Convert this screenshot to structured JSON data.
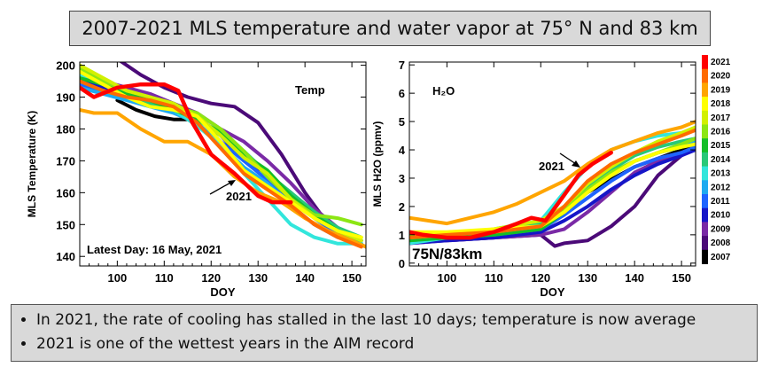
{
  "title": "2007-2021 MLS temperature and water vapor at 75° N and 83 km",
  "bullets": [
    "In 2021, the rate of cooling has stalled in the last 10 days; temperature is now average",
    "2021 is one of the wettest years in the AIM record"
  ],
  "chart_data": [
    {
      "type": "line",
      "xlabel": "DOY",
      "ylabel": "MLS Temperature (K)",
      "xlim": [
        92,
        153
      ],
      "ylim": [
        137,
        201
      ],
      "xticks": [
        100,
        110,
        120,
        130,
        140,
        150
      ],
      "yticks": [
        140,
        150,
        160,
        170,
        180,
        190,
        200
      ],
      "panel_label": "Temp",
      "latest_day": "Latest Day: 16 May, 2021",
      "annotation": "2021",
      "series": [
        {
          "name": "2007",
          "color": "#000000",
          "x": [
            100,
            104,
            108,
            112,
            115
          ],
          "y": [
            189,
            186,
            184,
            183,
            183
          ]
        },
        {
          "name": "2008",
          "color": "#4b0a78",
          "x": [
            100,
            105,
            110,
            115,
            120,
            125,
            130,
            135,
            140,
            145,
            150,
            153
          ],
          "y": [
            202,
            197,
            193,
            190,
            188,
            187,
            182,
            172,
            160,
            150,
            145,
            143
          ]
        },
        {
          "name": "2009",
          "color": "#7a2aa6",
          "x": [
            92,
            97,
            102,
            107,
            112,
            117,
            122,
            127,
            132,
            137,
            142,
            147,
            152
          ],
          "y": [
            196,
            195,
            193,
            191,
            188,
            185,
            180,
            176,
            170,
            163,
            155,
            149,
            144
          ]
        },
        {
          "name": "2010",
          "color": "#1616c8",
          "x": [
            92,
            97,
            102,
            107,
            112,
            117,
            122,
            127,
            132,
            137,
            142,
            147,
            152
          ],
          "y": [
            195,
            193,
            192,
            190,
            188,
            184,
            178,
            170,
            166,
            160,
            153,
            147,
            144
          ]
        },
        {
          "name": "2011",
          "color": "#1e64ff",
          "x": [
            92,
            97,
            102,
            107,
            112,
            117,
            122,
            127,
            132,
            137,
            142,
            147,
            152
          ],
          "y": [
            194,
            192,
            190,
            188,
            186,
            184,
            176,
            170,
            164,
            158,
            152,
            147,
            145
          ]
        },
        {
          "name": "2012",
          "color": "#1eaaf0",
          "x": [
            92,
            97,
            102,
            107,
            112,
            117,
            122,
            127,
            132,
            137,
            142,
            147,
            152
          ],
          "y": [
            193,
            191,
            189,
            187,
            185,
            182,
            175,
            168,
            163,
            156,
            150,
            146,
            144
          ]
        },
        {
          "name": "2013",
          "color": "#32e6dc",
          "x": [
            92,
            97,
            102,
            107,
            112,
            117,
            122,
            127,
            132,
            137,
            142,
            147,
            152
          ],
          "y": [
            197,
            194,
            191,
            189,
            186,
            181,
            175,
            166,
            158,
            150,
            146,
            144,
            144
          ]
        },
        {
          "name": "2014",
          "color": "#28c878",
          "x": [
            92,
            97,
            102,
            107,
            112,
            117,
            122,
            127,
            132,
            137,
            142,
            147,
            152
          ],
          "y": [
            195,
            192,
            190,
            188,
            187,
            183,
            178,
            173,
            166,
            160,
            154,
            149,
            146
          ]
        },
        {
          "name": "2015",
          "color": "#14be28",
          "x": [
            92,
            97,
            102,
            107,
            112,
            117,
            122,
            127,
            132,
            137,
            142,
            147,
            152
          ],
          "y": [
            196,
            194,
            191,
            189,
            186,
            183,
            179,
            172,
            167,
            159,
            153,
            148,
            145
          ]
        },
        {
          "name": "2016",
          "color": "#8ce614",
          "x": [
            92,
            97,
            102,
            107,
            112,
            117,
            122,
            127,
            132,
            137,
            142,
            147,
            152
          ],
          "y": [
            199,
            195,
            192,
            190,
            187,
            185,
            180,
            173,
            165,
            158,
            153,
            152,
            150
          ]
        },
        {
          "name": "2017",
          "color": "#d2f000",
          "x": [
            92,
            97,
            102,
            107,
            112,
            117,
            122,
            127,
            132,
            137,
            142,
            147,
            152
          ],
          "y": [
            200,
            196,
            192,
            190,
            188,
            184,
            178,
            171,
            166,
            158,
            152,
            148,
            145
          ]
        },
        {
          "name": "2018",
          "color": "#ffff00",
          "x": [
            92,
            97,
            102,
            107,
            112,
            117,
            122,
            127,
            132,
            137,
            142,
            147,
            152
          ],
          "y": [
            198,
            194,
            190,
            187,
            186,
            184,
            176,
            167,
            162,
            157,
            152,
            148,
            146
          ]
        },
        {
          "name": "2019",
          "color": "#ffa500",
          "x": [
            92,
            95,
            100,
            105,
            110,
            115,
            120,
            125,
            130,
            135,
            140,
            145,
            150,
            153
          ],
          "y": [
            186,
            185,
            185,
            180,
            176,
            176,
            172,
            165,
            160,
            157,
            152,
            148,
            145,
            143
          ]
        },
        {
          "name": "2020",
          "color": "#ff6a00",
          "x": [
            92,
            97,
            102,
            107,
            112,
            117,
            122,
            127,
            132,
            137,
            142,
            147,
            152
          ],
          "y": [
            195,
            192,
            190,
            189,
            187,
            182,
            174,
            166,
            161,
            156,
            150,
            146,
            143
          ]
        },
        {
          "name": "2021",
          "color": "#ff0000",
          "x": [
            92,
            95,
            100,
            105,
            110,
            113,
            116,
            120,
            125,
            130,
            133,
            137
          ],
          "y": [
            193,
            190,
            193,
            194,
            194,
            192,
            182,
            172,
            166,
            159,
            157,
            157
          ]
        }
      ]
    },
    {
      "type": "line",
      "xlabel": "DOY",
      "ylabel": "MLS H2O (ppmv)",
      "xlim": [
        92,
        153
      ],
      "ylim": [
        -0.1,
        7.1
      ],
      "xticks": [
        100,
        110,
        120,
        130,
        140,
        150
      ],
      "yticks": [
        0,
        1,
        2,
        3,
        4,
        5,
        6,
        7
      ],
      "panel_label": "H₂O",
      "location_label": "75N/83km",
      "annotation": "2021",
      "series": [
        {
          "name": "2007",
          "color": "#000000",
          "x": [
            92,
            100,
            110,
            120,
            130,
            140,
            150,
            153
          ],
          "y": [
            0.8,
            0.9,
            1.0,
            1.4,
            2.5,
            3.4,
            4.0,
            4.2
          ]
        },
        {
          "name": "2008",
          "color": "#4b0a78",
          "x": [
            92,
            100,
            110,
            120,
            123,
            125,
            130,
            135,
            140,
            145,
            150,
            153
          ],
          "y": [
            0.8,
            0.8,
            0.9,
            1.0,
            0.6,
            0.7,
            0.8,
            1.3,
            2.0,
            3.1,
            3.8,
            4.1
          ]
        },
        {
          "name": "2009",
          "color": "#7a2aa6",
          "x": [
            92,
            100,
            110,
            120,
            125,
            130,
            135,
            140,
            145,
            150,
            153
          ],
          "y": [
            0.7,
            0.8,
            0.9,
            1.0,
            1.2,
            1.8,
            2.5,
            3.2,
            3.6,
            3.9,
            4.1
          ]
        },
        {
          "name": "2010",
          "color": "#1616c8",
          "x": [
            92,
            100,
            110,
            120,
            125,
            130,
            135,
            140,
            145,
            150,
            153
          ],
          "y": [
            0.7,
            0.8,
            0.9,
            1.1,
            1.5,
            2.0,
            2.6,
            3.1,
            3.5,
            3.8,
            4.0
          ]
        },
        {
          "name": "2011",
          "color": "#1e64ff",
          "x": [
            92,
            100,
            110,
            120,
            125,
            130,
            135,
            140,
            145,
            150,
            153
          ],
          "y": [
            0.8,
            0.9,
            1.0,
            1.2,
            1.7,
            2.3,
            2.9,
            3.4,
            3.7,
            3.9,
            4.1
          ]
        },
        {
          "name": "2012",
          "color": "#1eaaf0",
          "x": [
            92,
            100,
            110,
            120,
            125,
            130,
            135,
            140,
            145,
            150,
            153
          ],
          "y": [
            0.9,
            1.0,
            1.1,
            1.3,
            1.9,
            2.6,
            3.2,
            3.6,
            3.9,
            4.1,
            4.3
          ]
        },
        {
          "name": "2013",
          "color": "#32e6dc",
          "x": [
            92,
            100,
            110,
            120,
            125,
            130,
            135,
            140,
            145,
            150,
            153
          ],
          "y": [
            0.7,
            0.9,
            1.2,
            1.5,
            2.5,
            3.4,
            4.0,
            4.3,
            4.5,
            4.6,
            4.7
          ]
        },
        {
          "name": "2014",
          "color": "#28c878",
          "x": [
            92,
            100,
            110,
            120,
            125,
            130,
            135,
            140,
            145,
            150,
            153
          ],
          "y": [
            0.8,
            0.9,
            1.1,
            1.4,
            2.0,
            2.7,
            3.3,
            3.8,
            4.1,
            4.3,
            4.4
          ]
        },
        {
          "name": "2015",
          "color": "#14be28",
          "x": [
            92,
            100,
            110,
            120,
            125,
            130,
            135,
            140,
            145,
            150,
            153
          ],
          "y": [
            0.8,
            0.9,
            1.0,
            1.2,
            1.8,
            2.5,
            3.1,
            3.6,
            3.9,
            4.1,
            4.2
          ]
        },
        {
          "name": "2016",
          "color": "#8ce614",
          "x": [
            92,
            100,
            110,
            120,
            125,
            130,
            135,
            140,
            145,
            150,
            153
          ],
          "y": [
            0.9,
            1.0,
            1.1,
            1.3,
            1.9,
            2.6,
            3.2,
            3.6,
            3.9,
            4.2,
            4.4
          ]
        },
        {
          "name": "2017",
          "color": "#d2f000",
          "x": [
            92,
            100,
            110,
            120,
            125,
            130,
            135,
            140,
            145,
            150,
            153
          ],
          "y": [
            1.0,
            1.0,
            1.2,
            1.5,
            2.0,
            2.8,
            3.4,
            3.9,
            4.3,
            4.6,
            4.8
          ]
        },
        {
          "name": "2018",
          "color": "#ffff00",
          "x": [
            92,
            100,
            110,
            120,
            125,
            130,
            135,
            140,
            145,
            150,
            153
          ],
          "y": [
            1.1,
            1.1,
            1.2,
            1.3,
            1.8,
            2.5,
            3.1,
            3.6,
            3.9,
            4.1,
            4.2
          ]
        },
        {
          "name": "2019",
          "color": "#ffa500",
          "x": [
            92,
            100,
            110,
            115,
            120,
            125,
            130,
            135,
            140,
            145,
            150,
            153
          ],
          "y": [
            1.6,
            1.4,
            1.8,
            2.1,
            2.5,
            2.9,
            3.5,
            4.0,
            4.3,
            4.6,
            4.8,
            5.0
          ]
        },
        {
          "name": "2020",
          "color": "#ff6a00",
          "x": [
            92,
            100,
            110,
            120,
            125,
            130,
            135,
            140,
            145,
            150,
            153
          ],
          "y": [
            0.9,
            1.0,
            1.1,
            1.3,
            2.0,
            2.9,
            3.5,
            3.9,
            4.2,
            4.5,
            4.7
          ]
        },
        {
          "name": "2021",
          "color": "#ff0000",
          "x": [
            92,
            95,
            100,
            105,
            110,
            115,
            118,
            121,
            125,
            128,
            131,
            135
          ],
          "y": [
            1.1,
            1.0,
            0.9,
            0.9,
            1.1,
            1.4,
            1.6,
            1.5,
            2.4,
            3.1,
            3.5,
            3.9
          ]
        }
      ]
    }
  ]
}
